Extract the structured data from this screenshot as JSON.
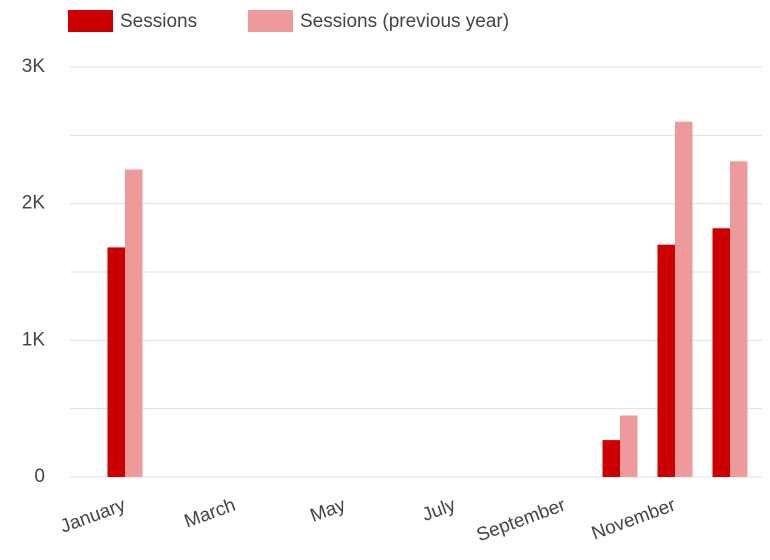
{
  "chart_data": {
    "type": "bar",
    "categories": [
      "January",
      null,
      "March",
      null,
      "May",
      null,
      "July",
      null,
      "September",
      null,
      "November",
      null
    ],
    "series": [
      {
        "name": "Sessions",
        "color": "#cc0000",
        "values": [
          1680,
          null,
          null,
          null,
          null,
          null,
          null,
          null,
          null,
          270,
          1700,
          1820
        ]
      },
      {
        "name": "Sessions (previous year)",
        "color": "#ef9a9a",
        "values": [
          2250,
          null,
          null,
          null,
          null,
          null,
          null,
          null,
          null,
          450,
          2600,
          2310
        ]
      }
    ],
    "ylim": [
      0,
      3000
    ],
    "yticks": [
      0,
      {
        "value": 1000,
        "label": "1K"
      },
      {
        "value": 2000,
        "label": "2K"
      },
      {
        "value": 3000,
        "label": "3K"
      }
    ],
    "minor_yticks": [
      500,
      1500,
      2500
    ],
    "grid": true,
    "legend": "top"
  }
}
